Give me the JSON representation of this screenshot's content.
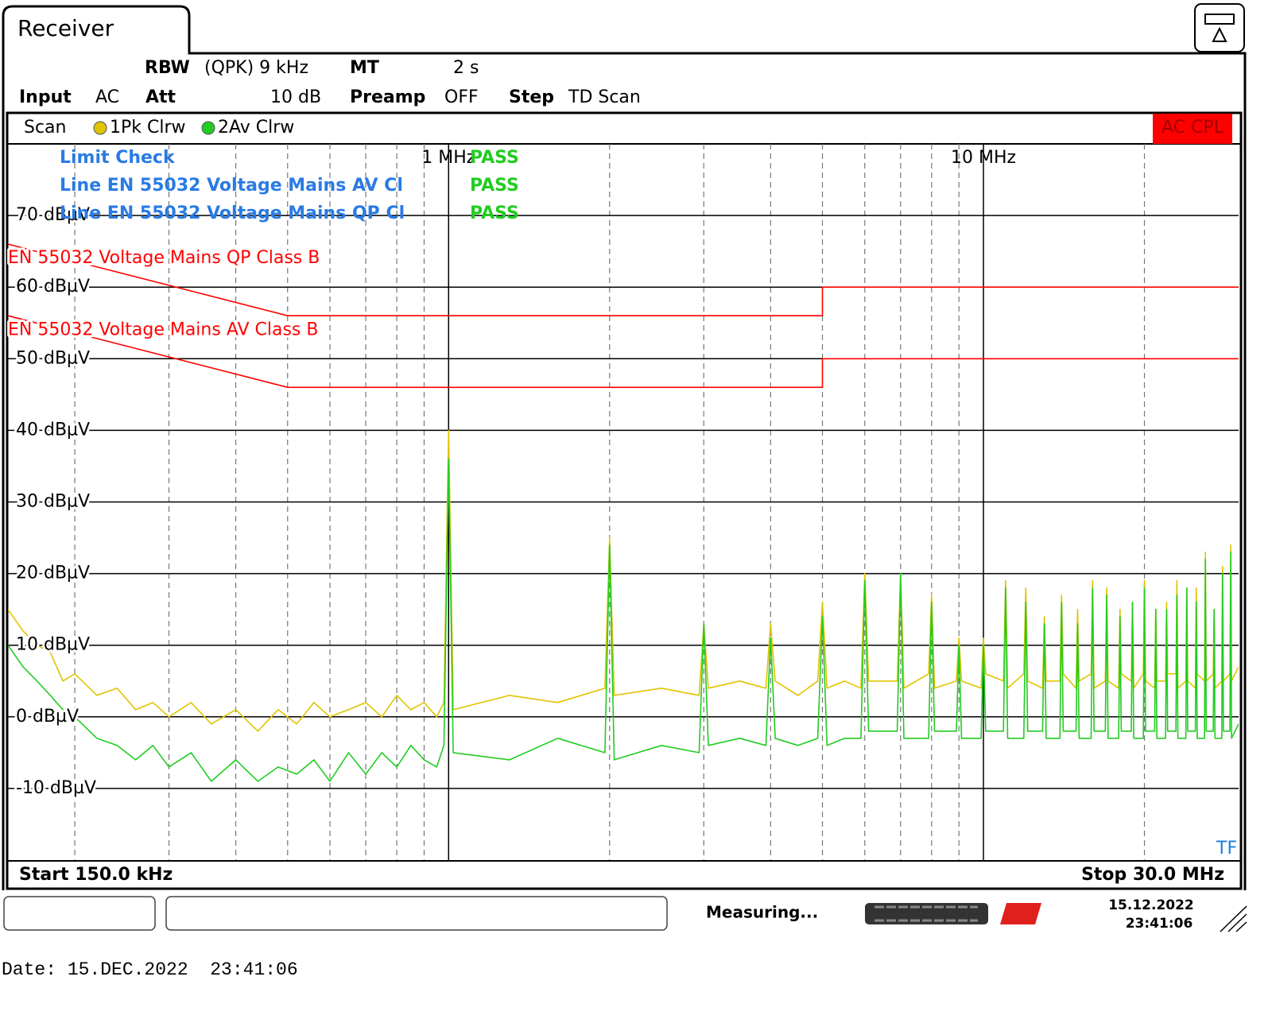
{
  "tab": "Receiver",
  "settings": {
    "rbw_label": "RBW",
    "rbw_value": "(QPK) 9 kHz",
    "mt_label": "MT",
    "mt_value": "2 s",
    "input_label": "Input",
    "input_value": "AC",
    "att_label": "Att",
    "att_value": "10 dB",
    "preamp_label": "Preamp",
    "preamp_value": "OFF",
    "step_label": "Step",
    "step_value": "TD Scan"
  },
  "status": {
    "measuring": "Measuring...",
    "date": "15.12.2022",
    "time": "23:41:06"
  },
  "footer": "Date: 15.DEC.2022  23:41:06",
  "chart_data": {
    "type": "line",
    "trace_header": "Scan",
    "badge": "AC CPL",
    "marker": "TF",
    "start_label": "Start 150.0 kHz",
    "stop_label": "Stop 30.0 MHz",
    "xscale": "log",
    "xlim": [
      0.15,
      30
    ],
    "xticks": [
      {
        "value": 1,
        "label": "1 MHz"
      },
      {
        "value": 10,
        "label": "10 MHz"
      }
    ],
    "xgrid": [
      0.2,
      0.3,
      0.4,
      0.5,
      0.6,
      0.7,
      0.8,
      0.9,
      2,
      3,
      4,
      5,
      6,
      7,
      8,
      9,
      20
    ],
    "ylim": [
      -20,
      80
    ],
    "yticks": [
      {
        "value": 70,
        "label": "70 dBµV"
      },
      {
        "value": 60,
        "label": "60 dBµV"
      },
      {
        "value": 50,
        "label": "50 dBµV"
      },
      {
        "value": 40,
        "label": "40 dBµV"
      },
      {
        "value": 30,
        "label": "30 dBµV"
      },
      {
        "value": 20,
        "label": "20 dBµV"
      },
      {
        "value": 10,
        "label": "10 dBµV"
      },
      {
        "value": 0,
        "label": "0 dBµV"
      },
      {
        "value": -10,
        "label": "-10 dBµV"
      }
    ],
    "grid": true,
    "limit_check": {
      "title": "Limit Check",
      "result": "PASS",
      "rows": [
        {
          "name": "Line EN 55032 Voltage Mains AV Cl",
          "result": "PASS"
        },
        {
          "name": "Line EN 55032 Voltage Mains QP Cl",
          "result": "PASS"
        }
      ]
    },
    "limit_lines": [
      {
        "name": "EN 55032 Voltage Mains QP Class B",
        "color": "#ff0000",
        "x": [
          0.15,
          0.5,
          5,
          5,
          30
        ],
        "values": [
          66,
          56,
          56,
          60,
          60
        ]
      },
      {
        "name": "EN 55032 Voltage Mains AV Class B",
        "color": "#ff0000",
        "x": [
          0.15,
          0.5,
          5,
          5,
          30
        ],
        "values": [
          56,
          46,
          46,
          50,
          50
        ]
      }
    ],
    "x": [
      0.15,
      0.16,
      0.17,
      0.18,
      0.19,
      0.2,
      0.22,
      0.24,
      0.26,
      0.28,
      0.3,
      0.33,
      0.36,
      0.4,
      0.44,
      0.48,
      0.52,
      0.56,
      0.6,
      0.65,
      0.7,
      0.75,
      0.8,
      0.85,
      0.9,
      0.95,
      0.98,
      1,
      1.02,
      1.3,
      1.6,
      1.96,
      2,
      2.04,
      2.5,
      2.94,
      3,
      3.06,
      3.5,
      3.92,
      4,
      4.08,
      4.5,
      4.9,
      5,
      5.1,
      5.5,
      5.9,
      6,
      6.1,
      6.9,
      7,
      7.1,
      7.9,
      8,
      8.1,
      8.9,
      9,
      9.1,
      9.9,
      10,
      10.1,
      10.9,
      11,
      11.1,
      11.9,
      12,
      12.1,
      12.9,
      13,
      13.1,
      13.9,
      14,
      14.1,
      14.9,
      15,
      15.1,
      15.9,
      16,
      16.1,
      16.9,
      17,
      17.1,
      17.9,
      18,
      18.1,
      18.9,
      19,
      19.1,
      19.9,
      20,
      20.1,
      20.9,
      21,
      21.1,
      21.9,
      22,
      22.1,
      22.9,
      23,
      23.1,
      23.9,
      24,
      24.1,
      24.9,
      25,
      25.1,
      25.9,
      26,
      26.1,
      26.9,
      27,
      27.1,
      27.9,
      28,
      28.1,
      28.9,
      29,
      29.1,
      30
    ],
    "series": [
      {
        "name": "1Pk Clrw",
        "color": "#e0c400",
        "values": [
          15,
          12,
          10,
          9,
          5,
          6,
          3,
          4,
          1,
          2,
          0,
          2,
          -1,
          1,
          -2,
          1,
          -1,
          2,
          0,
          1,
          2,
          0,
          3,
          1,
          2,
          0,
          2,
          40,
          1,
          3,
          2,
          4,
          25,
          3,
          4,
          3,
          13,
          4,
          5,
          4,
          13,
          5,
          3,
          5,
          16,
          4,
          5,
          4,
          20,
          5,
          5,
          20,
          4,
          6,
          17,
          4,
          5,
          11,
          5,
          4,
          11,
          6,
          5,
          19,
          4,
          6,
          18,
          5,
          4,
          14,
          5,
          5,
          17,
          6,
          4,
          15,
          5,
          6,
          19,
          4,
          5,
          18,
          5,
          4,
          15,
          6,
          5,
          16,
          4,
          6,
          19,
          5,
          4,
          15,
          5,
          5,
          16,
          6,
          6,
          19,
          4,
          5,
          18,
          5,
          4,
          18,
          6,
          5,
          23,
          5,
          6,
          15,
          4,
          5,
          21,
          5,
          6,
          24,
          5,
          7
        ]
      },
      {
        "name": "2Av Clrw",
        "color": "#22cc22",
        "values": [
          10,
          7,
          5,
          3,
          1,
          0,
          -3,
          -4,
          -6,
          -4,
          -7,
          -5,
          -9,
          -6,
          -9,
          -7,
          -8,
          -6,
          -9,
          -5,
          -8,
          -5,
          -7,
          -4,
          -6,
          -7,
          -4,
          36,
          -5,
          -6,
          -3,
          -5,
          24,
          -6,
          -4,
          -5,
          13,
          -4,
          -3,
          -4,
          11,
          -3,
          -4,
          -3,
          14,
          -4,
          -3,
          -3,
          19,
          -2,
          -2,
          20,
          -3,
          -3,
          16,
          -2,
          -2,
          10,
          -3,
          -3,
          10,
          -2,
          -2,
          18,
          -3,
          -3,
          16,
          -2,
          -2,
          13,
          -3,
          -3,
          16,
          -2,
          -2,
          13,
          -3,
          -3,
          18,
          -2,
          -2,
          17,
          -3,
          -3,
          14,
          -2,
          -2,
          16,
          -3,
          -3,
          18,
          -2,
          -2,
          15,
          -3,
          -3,
          15,
          -2,
          -2,
          17,
          -3,
          -3,
          18,
          -2,
          -2,
          16,
          -3,
          -3,
          22,
          -2,
          -2,
          15,
          -3,
          -3,
          20,
          -2,
          -2,
          23,
          -3,
          -1
        ]
      }
    ]
  }
}
